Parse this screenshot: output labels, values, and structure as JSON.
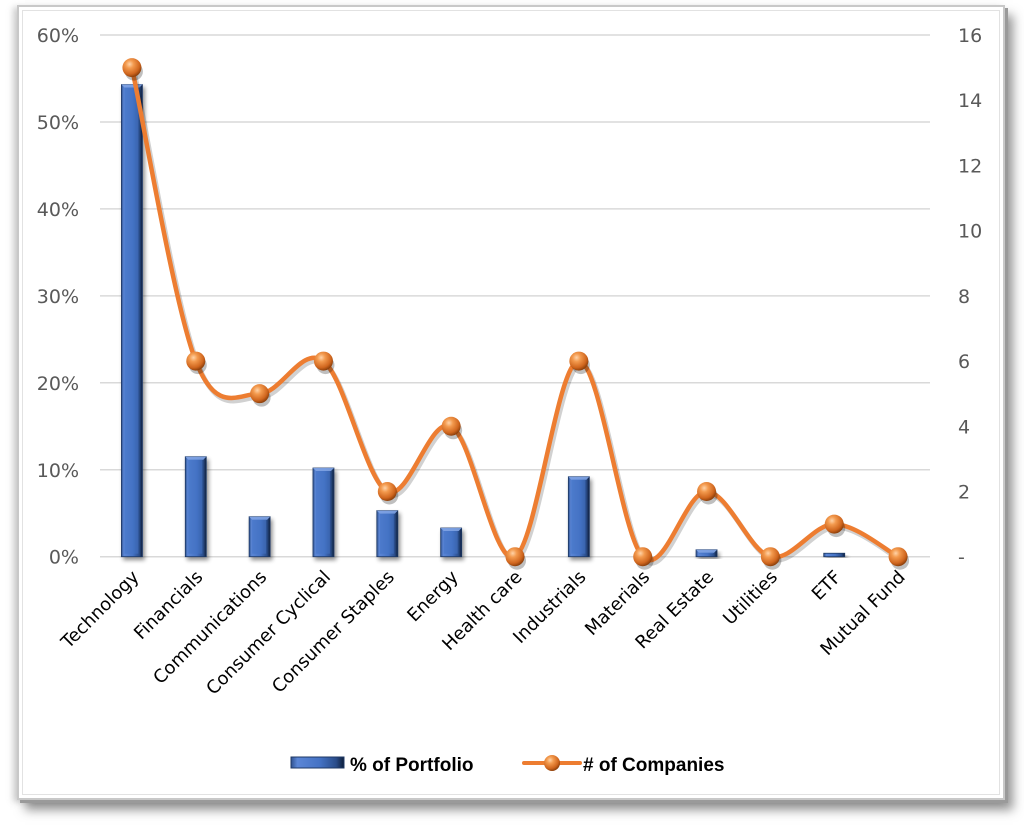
{
  "chart_data": {
    "type": "bar+line",
    "title": "",
    "categories": [
      "Technology",
      "Financials",
      "Communications",
      "Consumer Cyclical",
      "Consumer Staples",
      "Energy",
      "Health care",
      "Industrials",
      "Materials",
      "Real Estate",
      "Utilities",
      "ETF",
      "Mutual Fund"
    ],
    "series": [
      {
        "name": "% of Portfolio",
        "type": "bar",
        "axis": "left",
        "color": "#4472C4",
        "values": [
          54.3,
          11.5,
          4.6,
          10.2,
          5.3,
          3.3,
          0,
          9.2,
          0,
          0.8,
          0,
          0.4,
          0
        ]
      },
      {
        "name": "# of Companies",
        "type": "line",
        "smooth": true,
        "axis": "right",
        "color": "#ED7D31",
        "values": [
          15,
          6,
          5,
          6,
          2,
          4,
          0,
          6,
          0,
          2,
          0,
          1,
          0
        ]
      }
    ],
    "left_axis": {
      "label": "",
      "ylim": [
        0,
        60
      ],
      "ticks": [
        0,
        10,
        20,
        30,
        40,
        50,
        60
      ],
      "tick_labels": [
        "0%",
        "10%",
        "20%",
        "30%",
        "40%",
        "50%",
        "60%"
      ]
    },
    "right_axis": {
      "label": "",
      "ylim": [
        0,
        16
      ],
      "ticks": [
        0,
        2,
        4,
        6,
        8,
        10,
        12,
        14,
        16
      ],
      "tick_labels": [
        "-",
        "2",
        "4",
        "6",
        "8",
        "10",
        "12",
        "14",
        "16"
      ]
    },
    "xlabel": "",
    "grid": true,
    "legend_position": "bottom"
  },
  "legend": {
    "items": [
      {
        "label": "% of Portfolio",
        "kind": "bar",
        "color": "#4472C4"
      },
      {
        "label": "# of Companies",
        "kind": "line-marker",
        "color": "#ED7D31"
      }
    ]
  },
  "colors": {
    "bar": "#4472C4",
    "bar_dark": "#1F3864",
    "line": "#ED7D31",
    "marker_dark": "#A0480E",
    "gridline": "#D9D9D9",
    "axis_text": "#595959"
  }
}
